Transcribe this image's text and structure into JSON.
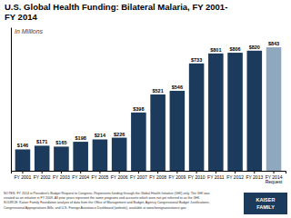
{
  "chart_data": {
    "type": "bar",
    "title": "U.S. Global Health Funding: Bilateral Malaria, FY 2001-\nFY 2014",
    "subtitle": "In Millions",
    "categories": [
      "FY 2001",
      "FY 2002",
      "FY 2003",
      "FY 2004",
      "FY 2005",
      "FY 2006",
      "FY 2007",
      "FY 2008",
      "FY 2009",
      "FY 2010",
      "FY 2011",
      "FY 2012",
      "FY 2013",
      "FY 2014\nRequest"
    ],
    "values": [
      146,
      171,
      165,
      198,
      214,
      226,
      398,
      521,
      546,
      733,
      801,
      806,
      820,
      843
    ],
    "value_labels": [
      "$146",
      "$171",
      "$165",
      "$198",
      "$214",
      "$226",
      "$398",
      "$521",
      "$546",
      "$733",
      "$801",
      "$806",
      "$820",
      "$843"
    ],
    "colors": [
      "#1b3a5c",
      "#1b3a5c",
      "#1b3a5c",
      "#1b3a5c",
      "#1b3a5c",
      "#1b3a5c",
      "#1b3a5c",
      "#1b3a5c",
      "#1b3a5c",
      "#1b3a5c",
      "#1b3a5c",
      "#1b3a5c",
      "#1b3a5c",
      "#8fa8be"
    ],
    "ylim": [
      0,
      980
    ],
    "yticks": [],
    "data_labels": true,
    "tick_labels": "x",
    "grid": false,
    "annotations": [
      "NOTES: FY 2014 is President's Budget Request to Congress. Represents funding through the Global Health Initiative (GHI) only. The GHI was",
      "created as an initiative in FY 2009.  All prior years represent the same programs and accounts which were not yet referred to as the GHI.",
      "SOURCE: Kaiser Family Foundation analysis of data from the Office of Management and Budget, Agency Congressional Budget Justifications,",
      "Congressional Appropriations Bills, and U.S. Foreign Assistance Dashboard (website), available at www.foreignassistance.gov.",
      "KAISER",
      "FAMILY"
    ]
  }
}
